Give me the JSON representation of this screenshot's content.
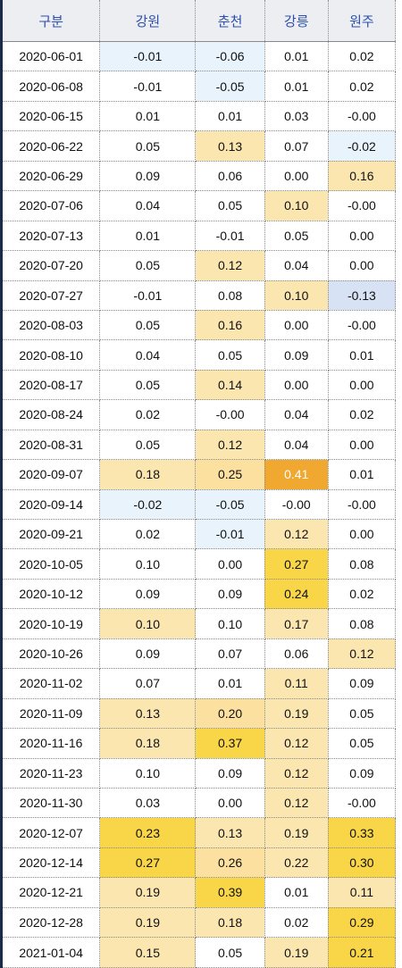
{
  "table": {
    "headers": [
      "구분",
      "강원",
      "춘천",
      "강릉",
      "원주"
    ],
    "rows": [
      [
        "2020-06-01",
        "-0.01",
        "-0.06",
        "0.01",
        "0.02"
      ],
      [
        "2020-06-08",
        "-0.01",
        "-0.05",
        "0.01",
        "0.02"
      ],
      [
        "2020-06-15",
        "0.01",
        "0.01",
        "0.03",
        "-0.00"
      ],
      [
        "2020-06-22",
        "0.05",
        "0.13",
        "0.07",
        "-0.02"
      ],
      [
        "2020-06-29",
        "0.09",
        "0.06",
        "0.00",
        "0.16"
      ],
      [
        "2020-07-06",
        "0.04",
        "0.05",
        "0.10",
        "-0.00"
      ],
      [
        "2020-07-13",
        "0.01",
        "-0.01",
        "0.05",
        "0.00"
      ],
      [
        "2020-07-20",
        "0.05",
        "0.12",
        "0.04",
        "0.00"
      ],
      [
        "2020-07-27",
        "-0.01",
        "0.08",
        "0.10",
        "-0.13"
      ],
      [
        "2020-08-03",
        "0.05",
        "0.16",
        "0.00",
        "-0.00"
      ],
      [
        "2020-08-10",
        "0.04",
        "0.05",
        "0.09",
        "0.01"
      ],
      [
        "2020-08-17",
        "0.05",
        "0.14",
        "0.00",
        "0.00"
      ],
      [
        "2020-08-24",
        "0.02",
        "-0.00",
        "0.04",
        "0.02"
      ],
      [
        "2020-08-31",
        "0.05",
        "0.12",
        "0.04",
        "0.00"
      ],
      [
        "2020-09-07",
        "0.18",
        "0.25",
        "0.41",
        "0.01"
      ],
      [
        "2020-09-14",
        "-0.02",
        "-0.05",
        "-0.00",
        "-0.00"
      ],
      [
        "2020-09-21",
        "0.02",
        "-0.01",
        "0.12",
        "0.00"
      ],
      [
        "2020-10-05",
        "0.10",
        "0.00",
        "0.27",
        "0.08"
      ],
      [
        "2020-10-12",
        "0.09",
        "0.09",
        "0.24",
        "0.02"
      ],
      [
        "2020-10-19",
        "0.10",
        "0.10",
        "0.17",
        "0.08"
      ],
      [
        "2020-10-26",
        "0.09",
        "0.07",
        "0.06",
        "0.12"
      ],
      [
        "2020-11-02",
        "0.07",
        "0.01",
        "0.11",
        "0.09"
      ],
      [
        "2020-11-09",
        "0.13",
        "0.20",
        "0.19",
        "0.05"
      ],
      [
        "2020-11-16",
        "0.18",
        "0.37",
        "0.12",
        "0.05"
      ],
      [
        "2020-11-23",
        "0.10",
        "0.09",
        "0.12",
        "0.09"
      ],
      [
        "2020-11-30",
        "0.03",
        "0.00",
        "0.12",
        "-0.00"
      ],
      [
        "2020-12-07",
        "0.23",
        "0.13",
        "0.19",
        "0.33"
      ],
      [
        "2020-12-14",
        "0.27",
        "0.26",
        "0.22",
        "0.30"
      ],
      [
        "2020-12-21",
        "0.19",
        "0.39",
        "0.01",
        "0.11"
      ],
      [
        "2020-12-28",
        "0.19",
        "0.18",
        "0.02",
        "0.29"
      ],
      [
        "2021-01-04",
        "0.15",
        "0.05",
        "0.19",
        "0.21"
      ]
    ],
    "fills": [
      [
        null,
        "#e8f3fb",
        "#e8f3fb",
        null,
        null
      ],
      [
        null,
        null,
        "#e8f3fb",
        null,
        null
      ],
      [
        null,
        null,
        null,
        null,
        null
      ],
      [
        null,
        null,
        "#fbe6b0",
        null,
        "#e8f3fb"
      ],
      [
        null,
        null,
        null,
        null,
        "#fbe6b0"
      ],
      [
        null,
        null,
        null,
        "#fbe6b0",
        null
      ],
      [
        null,
        null,
        null,
        null,
        null
      ],
      [
        null,
        null,
        "#fbe6b0",
        null,
        null
      ],
      [
        null,
        null,
        null,
        "#fbe6b0",
        "#d7e3f4"
      ],
      [
        null,
        null,
        "#fbe6b0",
        null,
        null
      ],
      [
        null,
        null,
        null,
        null,
        null
      ],
      [
        null,
        null,
        "#fbe6b0",
        null,
        null
      ],
      [
        null,
        null,
        null,
        null,
        null
      ],
      [
        null,
        null,
        "#fbe6b0",
        null,
        null
      ],
      [
        null,
        "#fbe6b0",
        "#fbe0a0",
        "#f0a830",
        null
      ],
      [
        null,
        "#e8f3fb",
        "#e8f3fb",
        null,
        null
      ],
      [
        null,
        null,
        "#e8f3fb",
        "#fbe6b0",
        null
      ],
      [
        null,
        null,
        null,
        "#f9d548",
        null
      ],
      [
        null,
        null,
        null,
        "#f9d548",
        null
      ],
      [
        null,
        "#fbe6b0",
        null,
        "#fbe6b0",
        null
      ],
      [
        null,
        null,
        null,
        null,
        "#fbe6b0"
      ],
      [
        null,
        null,
        null,
        "#fbe6b0",
        null
      ],
      [
        null,
        "#fbe6b0",
        "#fbe0a0",
        "#fbe6b0",
        null
      ],
      [
        null,
        "#fbe6b0",
        "#f9d548",
        "#fbe6b0",
        null
      ],
      [
        null,
        null,
        null,
        "#fbe6b0",
        null
      ],
      [
        null,
        null,
        null,
        "#fbe6b0",
        null
      ],
      [
        null,
        "#f9d548",
        "#fbe6b0",
        "#fbe6b0",
        "#f9d548"
      ],
      [
        null,
        "#f9d548",
        "#fbe0a0",
        "#fbe6b0",
        "#f9d548"
      ],
      [
        null,
        "#fbe6b0",
        "#f9d548",
        null,
        "#fbe6b0"
      ],
      [
        null,
        "#fbe6b0",
        "#fbe6b0",
        null,
        "#f9d548"
      ],
      [
        null,
        "#fbe6b0",
        null,
        "#fbe6b0",
        "#f9d548"
      ]
    ]
  }
}
